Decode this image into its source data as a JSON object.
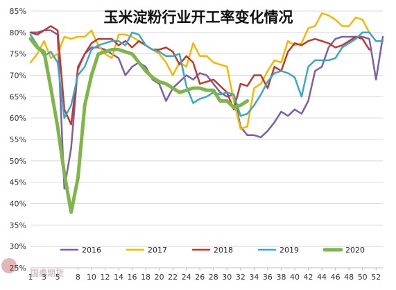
{
  "chart_data": {
    "type": "line",
    "title": "玉米淀粉行业开工率变化情况",
    "xlabel": "",
    "ylabel": "",
    "x_ticks": [
      1,
      3,
      5,
      8,
      10,
      12,
      14,
      16,
      18,
      20,
      22,
      24,
      26,
      28,
      30,
      32,
      34,
      36,
      38,
      40,
      42,
      44,
      46,
      48,
      50,
      52
    ],
    "y_ticks": [
      "25%",
      "30%",
      "35%",
      "40%",
      "45%",
      "50%",
      "55%",
      "60%",
      "65%",
      "70%",
      "75%",
      "80%",
      "85%"
    ],
    "ylim": [
      25,
      85
    ],
    "xlim": [
      1,
      53
    ],
    "grid": true,
    "legend": "bottom",
    "series": [
      {
        "name": "2016",
        "color": "#7e5ea6",
        "width": 2.5,
        "values": [
          [
            1,
            80
          ],
          [
            2,
            80
          ],
          [
            3,
            80.5
          ],
          [
            4,
            80.5
          ],
          [
            5,
            79.5
          ],
          [
            6,
            43.5
          ],
          [
            7,
            53
          ],
          [
            8,
            72
          ],
          [
            9,
            75
          ],
          [
            10,
            76.5
          ],
          [
            11,
            76.5
          ],
          [
            12,
            76
          ],
          [
            13,
            75
          ],
          [
            14,
            74
          ],
          [
            15,
            70
          ],
          [
            16,
            72
          ],
          [
            17,
            73
          ],
          [
            18,
            72
          ],
          [
            19,
            69
          ],
          [
            20,
            68
          ],
          [
            21,
            64
          ],
          [
            22,
            67
          ],
          [
            23,
            68.5
          ],
          [
            24,
            70
          ],
          [
            25,
            69
          ],
          [
            26,
            70.5
          ],
          [
            27,
            70
          ],
          [
            28,
            68
          ],
          [
            29,
            66
          ],
          [
            30,
            65
          ],
          [
            31,
            65.5
          ],
          [
            32,
            58
          ],
          [
            33,
            56
          ],
          [
            34,
            56
          ],
          [
            35,
            55.5
          ],
          [
            36,
            57
          ],
          [
            37,
            59
          ],
          [
            38,
            61.5
          ],
          [
            39,
            60.5
          ],
          [
            40,
            62
          ],
          [
            41,
            61
          ],
          [
            42,
            64
          ],
          [
            43,
            71
          ],
          [
            44,
            72
          ],
          [
            45,
            76.5
          ],
          [
            46,
            78.5
          ],
          [
            47,
            79
          ],
          [
            48,
            79
          ],
          [
            49,
            79
          ],
          [
            50,
            79
          ],
          [
            51,
            78.5
          ],
          [
            52,
            69
          ],
          [
            53,
            79
          ]
        ]
      },
      {
        "name": "2017",
        "color": "#f5b800",
        "width": 2.5,
        "values": [
          [
            1,
            73
          ],
          [
            2,
            75
          ],
          [
            3,
            78
          ],
          [
            4,
            74
          ],
          [
            5,
            75
          ],
          [
            6,
            79
          ],
          [
            7,
            78.5
          ],
          [
            8,
            79
          ],
          [
            9,
            79
          ],
          [
            10,
            80.5
          ],
          [
            11,
            77
          ],
          [
            12,
            75
          ],
          [
            13,
            74
          ],
          [
            14,
            79.5
          ],
          [
            15,
            79.5
          ],
          [
            16,
            79
          ],
          [
            17,
            78
          ],
          [
            18,
            77
          ],
          [
            19,
            76
          ],
          [
            20,
            75
          ],
          [
            21,
            73
          ],
          [
            22,
            70
          ],
          [
            23,
            73
          ],
          [
            24,
            72
          ],
          [
            25,
            77.5
          ],
          [
            26,
            74.5
          ],
          [
            27,
            74.5
          ],
          [
            28,
            73
          ],
          [
            29,
            72.5
          ],
          [
            30,
            72
          ],
          [
            31,
            64
          ],
          [
            32,
            57.5
          ],
          [
            33,
            58
          ],
          [
            34,
            67
          ],
          [
            35,
            68
          ],
          [
            36,
            71
          ],
          [
            37,
            73.5
          ],
          [
            38,
            73
          ],
          [
            39,
            78
          ],
          [
            40,
            77
          ],
          [
            41,
            77.5
          ],
          [
            42,
            81
          ],
          [
            43,
            81.5
          ],
          [
            44,
            84.5
          ],
          [
            45,
            84
          ],
          [
            46,
            83
          ],
          [
            47,
            81.5
          ],
          [
            48,
            81.5
          ],
          [
            49,
            83.5
          ],
          [
            50,
            83
          ],
          [
            51,
            80
          ]
        ]
      },
      {
        "name": "2018",
        "color": "#c0392b",
        "width": 2.5,
        "values": [
          [
            1,
            80
          ],
          [
            2,
            79.5
          ],
          [
            3,
            80.5
          ],
          [
            4,
            81.5
          ],
          [
            5,
            80.5
          ],
          [
            6,
            62
          ],
          [
            7,
            58.5
          ],
          [
            8,
            71.5
          ],
          [
            9,
            75
          ],
          [
            10,
            77.5
          ],
          [
            11,
            78.5
          ],
          [
            12,
            78.5
          ],
          [
            13,
            78.5
          ],
          [
            14,
            77
          ],
          [
            15,
            78
          ],
          [
            16,
            76.5
          ],
          [
            17,
            78
          ],
          [
            18,
            77
          ],
          [
            19,
            76
          ],
          [
            20,
            76
          ],
          [
            21,
            76.5
          ],
          [
            22,
            75.5
          ],
          [
            23,
            72.5
          ],
          [
            24,
            74.5
          ],
          [
            25,
            73
          ],
          [
            26,
            68
          ],
          [
            27,
            68.5
          ],
          [
            28,
            69
          ],
          [
            29,
            67.5
          ],
          [
            30,
            66
          ],
          [
            31,
            62
          ],
          [
            32,
            68
          ],
          [
            33,
            67.5
          ],
          [
            34,
            70
          ],
          [
            35,
            70
          ],
          [
            36,
            67
          ],
          [
            37,
            72
          ],
          [
            38,
            71
          ],
          [
            39,
            75.5
          ],
          [
            40,
            77.5
          ],
          [
            41,
            77
          ],
          [
            42,
            78
          ],
          [
            43,
            78.5
          ],
          [
            44,
            78
          ],
          [
            45,
            77.5
          ],
          [
            46,
            76.5
          ],
          [
            47,
            77
          ],
          [
            48,
            78
          ],
          [
            49,
            79
          ],
          [
            50,
            78.5
          ],
          [
            51,
            76
          ]
        ]
      },
      {
        "name": "2019",
        "color": "#3ba7c4",
        "width": 2.5,
        "values": [
          [
            1,
            79.5
          ],
          [
            2,
            77
          ],
          [
            3,
            74.5
          ],
          [
            4,
            75.5
          ],
          [
            5,
            73
          ],
          [
            6,
            60
          ],
          [
            7,
            63
          ],
          [
            8,
            70
          ],
          [
            9,
            72
          ],
          [
            10,
            76
          ],
          [
            11,
            77
          ],
          [
            12,
            77.5
          ],
          [
            13,
            78
          ],
          [
            14,
            78
          ],
          [
            15,
            77
          ],
          [
            16,
            80
          ],
          [
            17,
            79.5
          ],
          [
            18,
            77
          ],
          [
            19,
            76
          ],
          [
            20,
            75.5
          ],
          [
            21,
            74.5
          ],
          [
            22,
            74.5
          ],
          [
            23,
            75
          ],
          [
            24,
            67.5
          ],
          [
            25,
            63.5
          ],
          [
            26,
            64.5
          ],
          [
            27,
            65
          ],
          [
            28,
            66
          ],
          [
            29,
            65.5
          ],
          [
            30,
            66
          ],
          [
            31,
            65.5
          ],
          [
            32,
            60.5
          ],
          [
            33,
            61
          ],
          [
            34,
            63
          ],
          [
            35,
            65.5
          ],
          [
            36,
            68.5
          ],
          [
            37,
            70.5
          ],
          [
            38,
            71
          ],
          [
            39,
            70.5
          ],
          [
            40,
            69.5
          ],
          [
            41,
            65
          ],
          [
            42,
            72
          ],
          [
            43,
            73.5
          ],
          [
            44,
            73.5
          ],
          [
            45,
            73.5
          ],
          [
            46,
            74
          ],
          [
            47,
            76.5
          ],
          [
            48,
            77.5
          ],
          [
            49,
            78.5
          ],
          [
            50,
            80
          ],
          [
            51,
            80
          ],
          [
            52,
            78
          ],
          [
            53,
            78
          ]
        ]
      },
      {
        "name": "2020",
        "color": "#7fb649",
        "width": 5,
        "values": [
          [
            1,
            78.5
          ],
          [
            2,
            76.5
          ],
          [
            3,
            75.5
          ],
          [
            4,
            67
          ],
          [
            5,
            58
          ],
          [
            6,
            47
          ],
          [
            7,
            38
          ],
          [
            8,
            46
          ],
          [
            9,
            63
          ],
          [
            10,
            70
          ],
          [
            11,
            75
          ],
          [
            12,
            75.5
          ],
          [
            13,
            76
          ],
          [
            14,
            76
          ],
          [
            15,
            75.5
          ],
          [
            16,
            75
          ],
          [
            17,
            73
          ],
          [
            18,
            71
          ],
          [
            19,
            69.5
          ],
          [
            20,
            68.5
          ],
          [
            21,
            68
          ],
          [
            22,
            67
          ],
          [
            23,
            66
          ],
          [
            24,
            66.5
          ],
          [
            25,
            67
          ],
          [
            26,
            67
          ],
          [
            27,
            66.5
          ],
          [
            28,
            66.5
          ],
          [
            29,
            64
          ],
          [
            30,
            64
          ],
          [
            31,
            62.5
          ],
          [
            32,
            63
          ],
          [
            33,
            64
          ]
        ]
      }
    ]
  },
  "watermark": "国泰期货"
}
